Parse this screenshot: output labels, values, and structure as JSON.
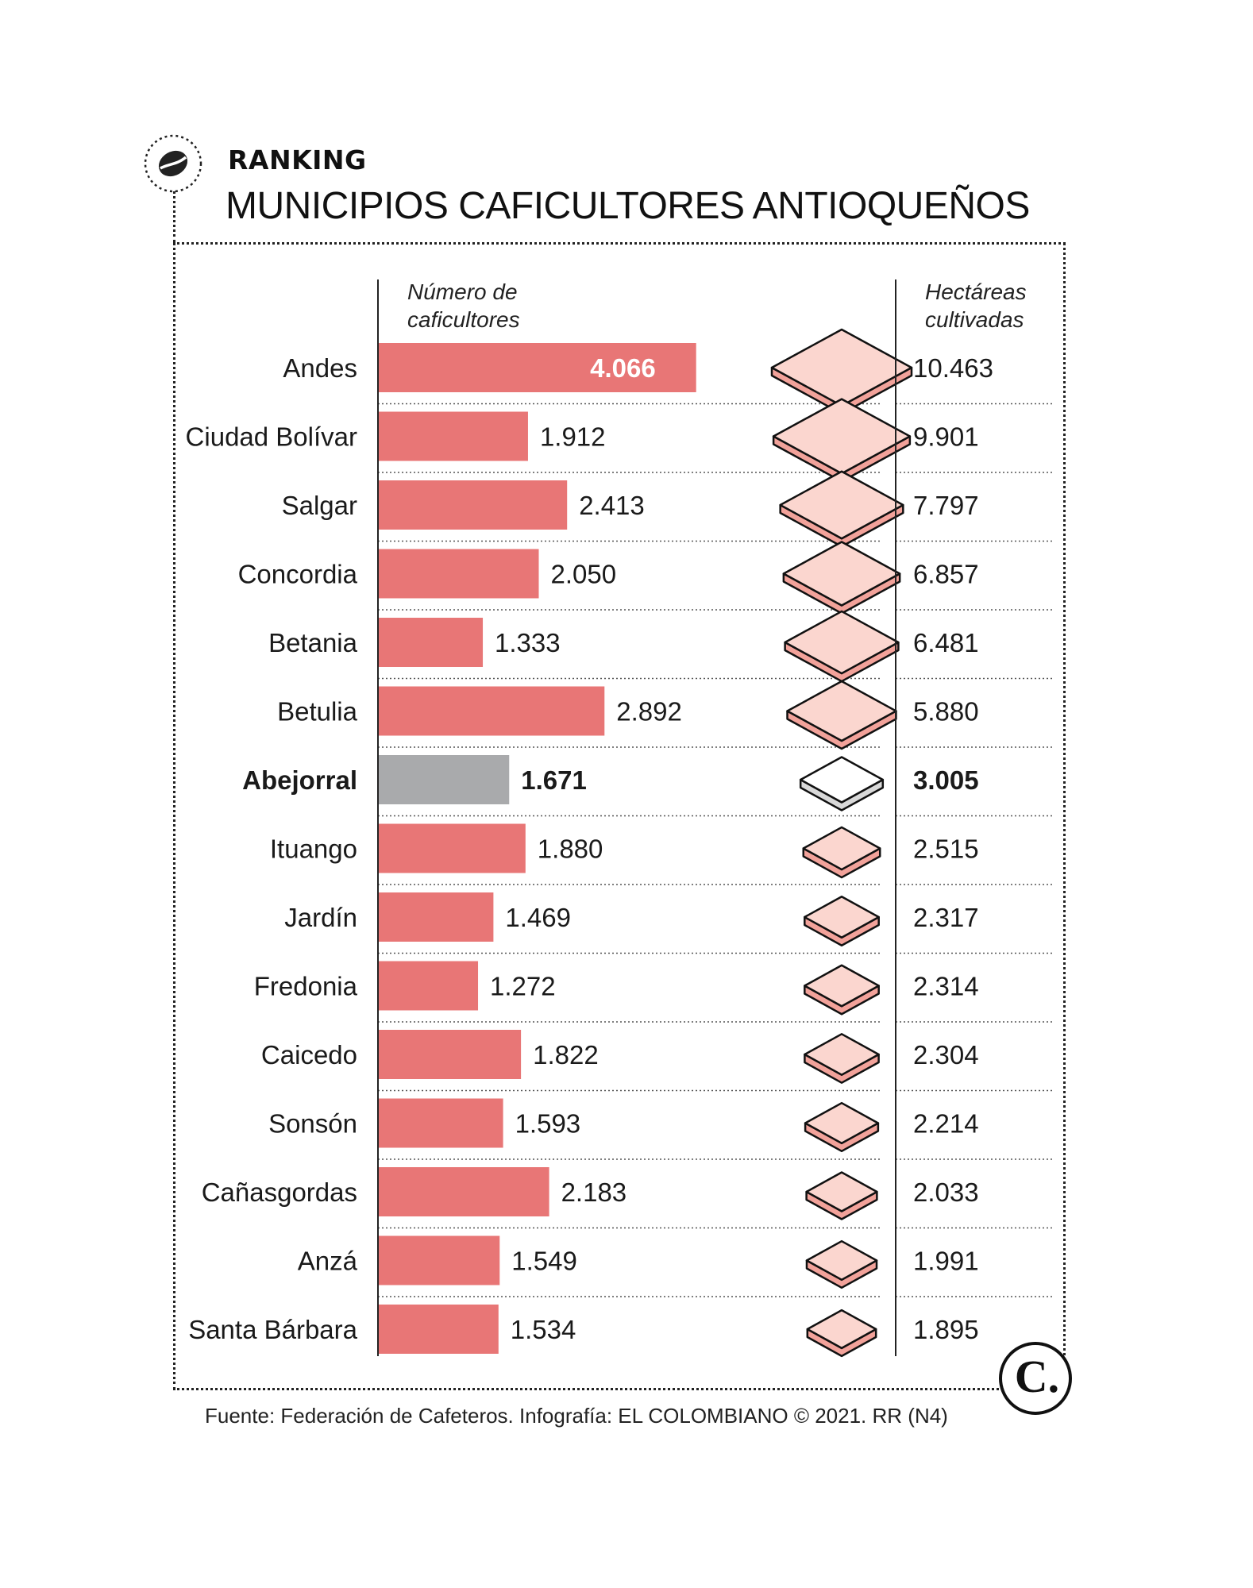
{
  "header": {
    "kicker": "RANKING",
    "title": "MUNICIPIOS CAFICULTORES ANTIOQUEÑOS"
  },
  "columns": {
    "left_header_line1": "Número de",
    "left_header_line2": "caficultores",
    "right_header_line1": "Hectáreas",
    "right_header_line2": "cultivadas"
  },
  "footer": {
    "source": "Fuente: Federación de Cafeteros. Infografía: EL COLOMBIANO © 2021. RR (N4)"
  },
  "brand": {
    "mark": "C."
  },
  "colors": {
    "bar": "#e87676",
    "bar_highlight": "#a9aaac",
    "tile_top": "#fbd6cf",
    "tile_side": "#f2a29a",
    "tile_highlight_top": "#ffffff",
    "tile_highlight_side": "#d9d9d9",
    "label_on_bar": "#ffffff"
  },
  "icons": [
    "coffee-bean-icon",
    "el-colombiano-logo-icon"
  ],
  "chart_data": {
    "type": "bar",
    "highlight": "Abejorral",
    "categories": [
      "Andes",
      "Ciudad Bolívar",
      "Salgar",
      "Concordia",
      "Betania",
      "Betulia",
      "Abejorral",
      "Ituango",
      "Jardín",
      "Fredonia",
      "Caicedo",
      "Sonsón",
      "Cañasgordas",
      "Anzá",
      "Santa Bárbara"
    ],
    "series": [
      {
        "name": "Número de caficultores",
        "values": [
          4066,
          1912,
          2413,
          2050,
          1333,
          2892,
          1671,
          1880,
          1469,
          1272,
          1822,
          1593,
          2183,
          1549,
          1534
        ],
        "labels": [
          "4.066",
          "1.912",
          "2.413",
          "2.050",
          "1.333",
          "2.892",
          "1.671",
          "1.880",
          "1.469",
          "1.272",
          "1.822",
          "1.593",
          "2.183",
          "1.549",
          "1.534"
        ]
      },
      {
        "name": "Hectáreas cultivadas",
        "values": [
          10463,
          9901,
          7797,
          6857,
          6481,
          5880,
          3005,
          2515,
          2317,
          2314,
          2304,
          2214,
          2033,
          1991,
          1895
        ],
        "labels": [
          "10.463",
          "9.901",
          "7.797",
          "6.857",
          "6.481",
          "5.880",
          "3.005",
          "2.515",
          "2.317",
          "2.314",
          "2.304",
          "2.214",
          "2.033",
          "1.991",
          "1.895"
        ]
      }
    ]
  }
}
